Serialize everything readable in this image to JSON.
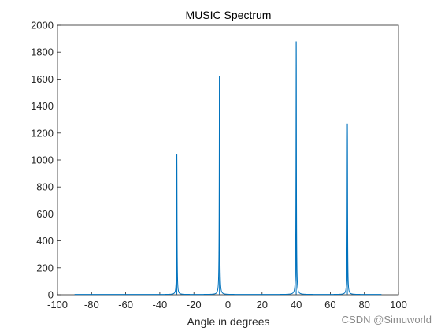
{
  "chart_data": {
    "type": "line",
    "title": "MUSIC Spectrum",
    "xlabel": "Angle in degrees",
    "ylabel": "",
    "xlim": [
      -100,
      100
    ],
    "ylim": [
      0,
      2000
    ],
    "xticks": [
      -100,
      -80,
      -60,
      -40,
      -20,
      0,
      20,
      40,
      60,
      80,
      100
    ],
    "yticks": [
      0,
      200,
      400,
      600,
      800,
      1000,
      1200,
      1400,
      1600,
      1800,
      2000
    ],
    "grid": false,
    "line_color": "#0072bd",
    "x_range": [
      -90,
      90
    ],
    "baseline": 2,
    "peaks": [
      {
        "x": -30,
        "y": 1040
      },
      {
        "x": -5,
        "y": 1620
      },
      {
        "x": 40,
        "y": 1880
      },
      {
        "x": 70,
        "y": 1270
      }
    ]
  },
  "watermark": "CSDN @Simuworld"
}
